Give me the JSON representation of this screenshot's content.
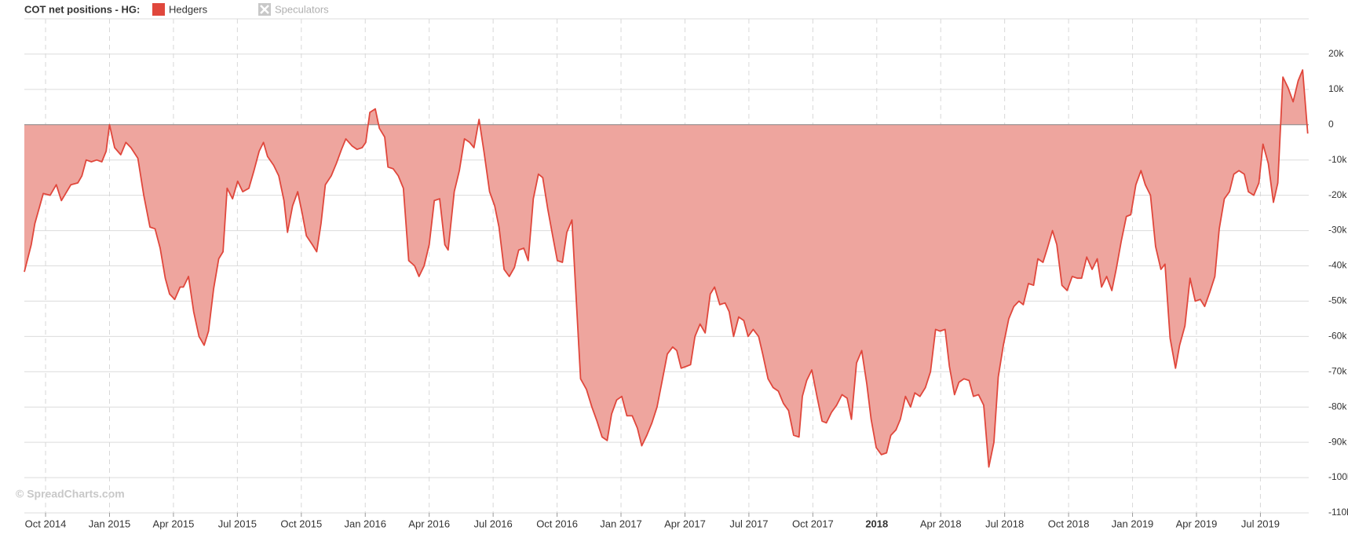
{
  "chart_data": {
    "type": "area",
    "title": "COT net positions - HG:",
    "source": "© SpreadCharts.com",
    "legend_hidden": [
      "Speculators"
    ],
    "grid": true,
    "xlim": [
      2014.667,
      2019.689
    ],
    "ylim": [
      -110000,
      30000
    ],
    "xticks": [
      {
        "value": 2014.75,
        "label": "Oct 2014"
      },
      {
        "value": 2015,
        "label": "Jan 2015"
      },
      {
        "value": 2015.25,
        "label": "Apr 2015"
      },
      {
        "value": 2015.5,
        "label": "Jul 2015"
      },
      {
        "value": 2015.75,
        "label": "Oct 2015"
      },
      {
        "value": 2016,
        "label": "Jan 2016"
      },
      {
        "value": 2016.25,
        "label": "Apr 2016"
      },
      {
        "value": 2016.5,
        "label": "Jul 2016"
      },
      {
        "value": 2016.75,
        "label": "Oct 2016"
      },
      {
        "value": 2017,
        "label": "Jan 2017"
      },
      {
        "value": 2017.25,
        "label": "Apr 2017"
      },
      {
        "value": 2017.5,
        "label": "Jul 2017"
      },
      {
        "value": 2017.75,
        "label": "Oct 2017"
      },
      2018,
      {
        "value": 2018.25,
        "label": "Apr 2018"
      },
      {
        "value": 2018.5,
        "label": "Jul 2018"
      },
      {
        "value": 2018.75,
        "label": "Oct 2018"
      },
      {
        "value": 2019,
        "label": "Jan 2019"
      },
      {
        "value": 2019.25,
        "label": "Apr 2019"
      },
      {
        "value": 2019.5,
        "label": "Jul 2019"
      }
    ],
    "yticks": [
      {
        "value": 20000,
        "label": "20k"
      },
      {
        "value": 10000,
        "label": "10k"
      },
      0,
      {
        "value": -10000,
        "label": "-10k"
      },
      {
        "value": -20000,
        "label": "-20k"
      },
      {
        "value": -30000,
        "label": "-30k"
      },
      {
        "value": -40000,
        "label": "-40k"
      },
      {
        "value": -50000,
        "label": "-50k"
      },
      {
        "value": -60000,
        "label": "-60k"
      },
      {
        "value": -70000,
        "label": "-70k"
      },
      {
        "value": -80000,
        "label": "-80k"
      },
      {
        "value": -90000,
        "label": "-90k"
      },
      {
        "value": -100000,
        "label": "-100k"
      },
      {
        "value": -110000,
        "label": "-110k"
      }
    ],
    "x": [
      2014.667,
      2014.694,
      2014.708,
      2014.741,
      2014.768,
      2014.792,
      2014.812,
      2014.849,
      2014.876,
      2014.892,
      2014.909,
      2014.929,
      2014.95,
      2014.97,
      2014.987,
      2015.0,
      2015.02,
      2015.044,
      2015.064,
      2015.084,
      2015.111,
      2015.134,
      2015.158,
      2015.178,
      2015.198,
      2015.218,
      2015.235,
      2015.255,
      2015.276,
      2015.289,
      2015.309,
      2015.329,
      2015.35,
      2015.37,
      2015.387,
      2015.407,
      2015.427,
      2015.444,
      2015.46,
      2015.481,
      2015.501,
      2015.521,
      2015.545,
      2015.565,
      2015.585,
      2015.602,
      2015.618,
      2015.642,
      2015.662,
      2015.682,
      2015.696,
      2015.716,
      2015.736,
      2015.753,
      2015.77,
      2015.793,
      2015.81,
      2015.827,
      2015.844,
      2015.867,
      2015.887,
      2015.907,
      2015.924,
      2015.948,
      2015.968,
      2015.988,
      2016.002,
      2016.018,
      2016.039,
      2016.055,
      2016.076,
      2016.089,
      2016.109,
      2016.129,
      2016.149,
      2016.17,
      2016.193,
      2016.21,
      2016.23,
      2016.25,
      2016.27,
      2016.291,
      2016.311,
      2016.324,
      2016.348,
      2016.368,
      2016.388,
      2016.408,
      2016.425,
      2016.445,
      2016.465,
      2016.486,
      2016.506,
      2016.523,
      2016.543,
      2016.563,
      2016.583,
      2016.6,
      2016.62,
      2016.637,
      2016.657,
      2016.677,
      2016.694,
      2016.714,
      2016.734,
      2016.751,
      2016.771,
      2016.788,
      2016.808,
      2016.822,
      2016.842,
      2016.865,
      2016.886,
      2016.906,
      2016.926,
      2016.946,
      2016.963,
      2016.983,
      2017.003,
      2017.023,
      2017.044,
      2017.064,
      2017.081,
      2017.101,
      2017.121,
      2017.141,
      2017.161,
      2017.181,
      2017.202,
      2017.218,
      2017.235,
      2017.255,
      2017.272,
      2017.289,
      2017.309,
      2017.329,
      2017.349,
      2017.366,
      2017.386,
      2017.407,
      2017.423,
      2017.44,
      2017.46,
      2017.48,
      2017.497,
      2017.517,
      2017.538,
      2017.554,
      2017.575,
      2017.595,
      2017.615,
      2017.635,
      2017.655,
      2017.675,
      2017.696,
      2017.709,
      2017.726,
      2017.746,
      2017.766,
      2017.786,
      2017.803,
      2017.823,
      2017.843,
      2017.864,
      2017.884,
      2017.901,
      2017.921,
      2017.941,
      2017.961,
      2017.978,
      2017.998,
      2018.018,
      2018.038,
      2018.055,
      2018.075,
      2018.092,
      2018.112,
      2018.132,
      2018.149,
      2018.169,
      2018.19,
      2018.21,
      2018.23,
      2018.247,
      2018.267,
      2018.284,
      2018.304,
      2018.321,
      2018.341,
      2018.361,
      2018.378,
      2018.398,
      2018.418,
      2018.438,
      2018.458,
      2018.475,
      2018.495,
      2018.516,
      2018.536,
      2018.556,
      2018.573,
      2018.593,
      2018.613,
      2018.63,
      2018.65,
      2018.667,
      2018.687,
      2018.704,
      2018.724,
      2018.744,
      2018.764,
      2018.784,
      2018.801,
      2018.821,
      2018.842,
      2018.862,
      2018.879,
      2018.899,
      2018.919,
      2018.936,
      2018.956,
      2018.976,
      2018.993,
      2019.013,
      2019.033,
      2019.05,
      2019.07,
      2019.09,
      2019.111,
      2019.127,
      2019.147,
      2019.168,
      2019.184,
      2019.205,
      2019.225,
      2019.245,
      2019.265,
      2019.282,
      2019.302,
      2019.322,
      2019.339,
      2019.359,
      2019.379,
      2019.396,
      2019.416,
      2019.437,
      2019.453,
      2019.474,
      2019.494,
      2019.51,
      2019.531,
      2019.551,
      2019.568,
      2019.588,
      2019.608,
      2019.628,
      2019.648,
      2019.665,
      2019.685
    ],
    "series": [
      {
        "name": "Hedgers",
        "color": "#e0473c",
        "fill": "#eea59e",
        "values": [
          -41700,
          -34000,
          -28000,
          -19500,
          -20000,
          -17000,
          -21500,
          -17000,
          -16500,
          -14500,
          -10000,
          -10500,
          -10000,
          -10500,
          -7500,
          0,
          -6500,
          -8500,
          -5000,
          -6500,
          -9500,
          -20000,
          -29000,
          -29500,
          -35000,
          -43500,
          -48000,
          -49500,
          -46000,
          -46000,
          -43000,
          -53000,
          -60000,
          -62500,
          -58500,
          -46500,
          -38000,
          -36000,
          -18000,
          -21000,
          -16000,
          -19000,
          -18000,
          -13000,
          -7500,
          -5000,
          -9000,
          -11500,
          -14500,
          -21500,
          -30500,
          -23000,
          -19000,
          -25000,
          -31500,
          -34000,
          -36000,
          -28000,
          -17000,
          -14500,
          -11000,
          -7000,
          -4000,
          -6000,
          -7000,
          -6500,
          -5000,
          3500,
          4500,
          -1000,
          -3500,
          -12000,
          -12500,
          -14500,
          -18000,
          -38500,
          -40000,
          -43000,
          -40000,
          -34000,
          -21500,
          -21000,
          -34000,
          -35500,
          -19000,
          -13000,
          -4000,
          -5000,
          -6500,
          1500,
          -8000,
          -19000,
          -23000,
          -29000,
          -41000,
          -43000,
          -40500,
          -35500,
          -35000,
          -38500,
          -21000,
          -14000,
          -15000,
          -24000,
          -32000,
          -38500,
          -39000,
          -30500,
          -27000,
          -45500,
          -72000,
          -75000,
          -80000,
          -84000,
          -88500,
          -89500,
          -82000,
          -78000,
          -77000,
          -82500,
          -82500,
          -86000,
          -91000,
          -88000,
          -84500,
          -80000,
          -72500,
          -65000,
          -63000,
          -64000,
          -69000,
          -68500,
          -68000,
          -60000,
          -56500,
          -59000,
          -48000,
          -46000,
          -51000,
          -50500,
          -53000,
          -60000,
          -54500,
          -55500,
          -60000,
          -58000,
          -60000,
          -65000,
          -72000,
          -74500,
          -75500,
          -79000,
          -81000,
          -88000,
          -88500,
          -77000,
          -72500,
          -69500,
          -77000,
          -84000,
          -84500,
          -81500,
          -79500,
          -76500,
          -77500,
          -83500,
          -67500,
          -64000,
          -73500,
          -83500,
          -91500,
          -93500,
          -93000,
          -88000,
          -86500,
          -83500,
          -77000,
          -80000,
          -76000,
          -77000,
          -74500,
          -70000,
          -58000,
          -58500,
          -58000,
          -68500,
          -76500,
          -73000,
          -72000,
          -72500,
          -77000,
          -76500,
          -79500,
          -97000,
          -90000,
          -71500,
          -62500,
          -55000,
          -51500,
          -50000,
          -51000,
          -45000,
          -45500,
          -38000,
          -39000,
          -35000,
          -30000,
          -34000,
          -45500,
          -47000,
          -43000,
          -43500,
          -43500,
          -37500,
          -41000,
          -38000,
          -46000,
          -43000,
          -47000,
          -41000,
          -33000,
          -26000,
          -25500,
          -17000,
          -13000,
          -17000,
          -20000,
          -34500,
          -41000,
          -39500,
          -60500,
          -69000,
          -62500,
          -57000,
          -43500,
          -50000,
          -49500,
          -51500,
          -47500,
          -43000,
          -29500,
          -21000,
          -19000,
          -14000,
          -13000,
          -14000,
          -19000,
          -20000,
          -16500,
          -5500,
          -11000,
          -22000,
          -16500,
          13500,
          10500,
          6500,
          12500,
          15500,
          -2500
        ]
      }
    ]
  }
}
